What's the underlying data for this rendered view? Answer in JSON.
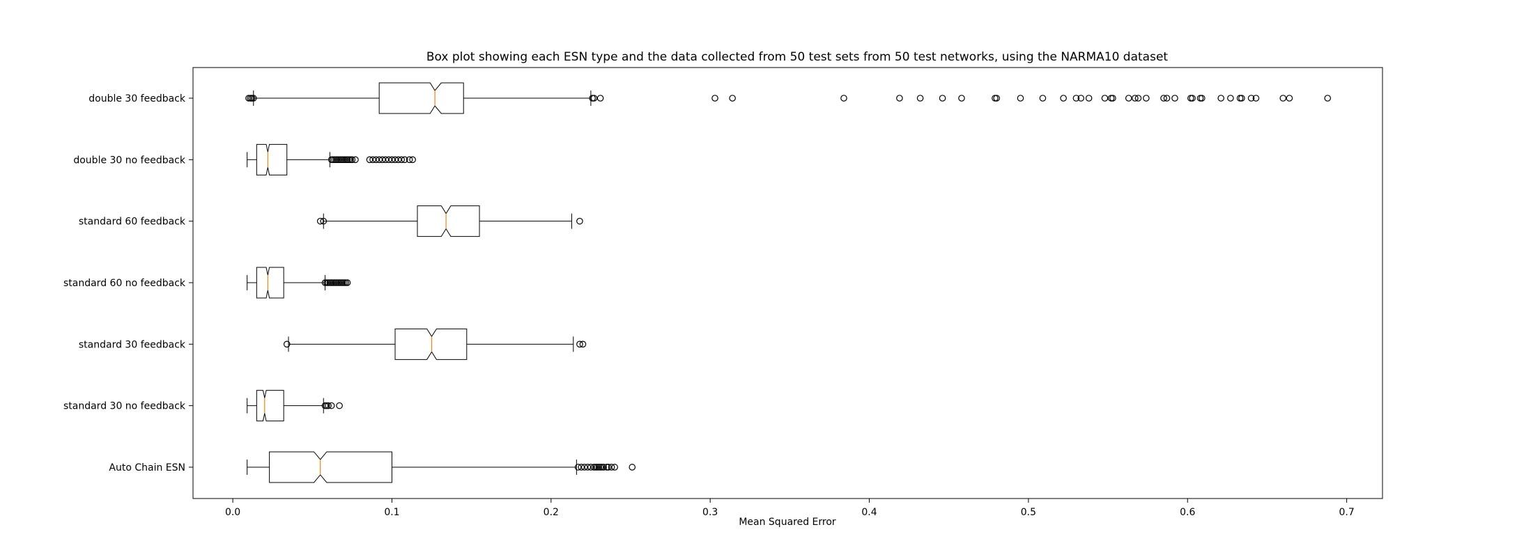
{
  "chart_data": {
    "type": "boxplot",
    "orientation": "horizontal",
    "notched": true,
    "title": "Box plot showing each ESN type and the data collected from 50 test sets from 50 test networks, using the NARMA10 dataset",
    "xlabel": "Mean Squared Error",
    "ylabel": "",
    "xlim": [
      -0.025,
      0.7225
    ],
    "xticks": [
      "0.0",
      "0.1",
      "0.2",
      "0.3",
      "0.4",
      "0.5",
      "0.6",
      "0.7"
    ],
    "grid": false,
    "colors": {
      "box": "#000000",
      "median": "#ff7f0e",
      "background": "#ffffff"
    },
    "categories": [
      "double 30 feedback",
      "double 30 no feedback",
      "standard 60 feedback",
      "standard 60 no feedback",
      "standard 30 feedback",
      "standard 30 no feedback",
      "Auto Chain ESN"
    ],
    "series": [
      {
        "name": "double 30 feedback",
        "whisker_low": 0.013,
        "q1": 0.092,
        "median": 0.127,
        "notch_low": 0.124,
        "notch_high": 0.131,
        "q3": 0.145,
        "whisker_high": 0.225,
        "outliers": [
          0.01,
          0.011,
          0.012,
          0.012,
          0.013,
          0.226,
          0.227,
          0.231,
          0.303,
          0.314,
          0.384,
          0.419,
          0.432,
          0.446,
          0.458,
          0.479,
          0.48,
          0.495,
          0.509,
          0.522,
          0.53,
          0.533,
          0.538,
          0.548,
          0.552,
          0.553,
          0.563,
          0.567,
          0.569,
          0.574,
          0.585,
          0.587,
          0.592,
          0.602,
          0.603,
          0.608,
          0.609,
          0.621,
          0.627,
          0.633,
          0.634,
          0.64,
          0.643,
          0.66,
          0.664,
          0.688
        ]
      },
      {
        "name": "double 30 no feedback",
        "whisker_low": 0.009,
        "q1": 0.015,
        "median": 0.022,
        "notch_low": 0.021,
        "notch_high": 0.023,
        "q3": 0.034,
        "whisker_high": 0.061,
        "outliers": [
          0.062,
          0.063,
          0.064,
          0.065,
          0.066,
          0.067,
          0.068,
          0.069,
          0.07,
          0.071,
          0.072,
          0.073,
          0.074,
          0.075,
          0.077,
          0.086,
          0.088,
          0.09,
          0.092,
          0.094,
          0.096,
          0.098,
          0.1,
          0.102,
          0.104,
          0.106,
          0.108,
          0.111,
          0.113
        ]
      },
      {
        "name": "standard 60 feedback",
        "whisker_low": 0.057,
        "q1": 0.116,
        "median": 0.134,
        "notch_low": 0.131,
        "notch_high": 0.137,
        "q3": 0.155,
        "whisker_high": 0.213,
        "outliers": [
          0.055,
          0.057,
          0.218
        ]
      },
      {
        "name": "standard 60 no feedback",
        "whisker_low": 0.009,
        "q1": 0.015,
        "median": 0.022,
        "notch_low": 0.021,
        "notch_high": 0.023,
        "q3": 0.032,
        "whisker_high": 0.058,
        "outliers": [
          0.058,
          0.059,
          0.06,
          0.061,
          0.062,
          0.063,
          0.064,
          0.065,
          0.066,
          0.067,
          0.068,
          0.069,
          0.07,
          0.071,
          0.072
        ]
      },
      {
        "name": "standard 30 feedback",
        "whisker_low": 0.035,
        "q1": 0.102,
        "median": 0.125,
        "notch_low": 0.122,
        "notch_high": 0.128,
        "q3": 0.147,
        "whisker_high": 0.214,
        "outliers": [
          0.034,
          0.218,
          0.22
        ]
      },
      {
        "name": "standard 30 no feedback",
        "whisker_low": 0.009,
        "q1": 0.015,
        "median": 0.02,
        "notch_low": 0.019,
        "notch_high": 0.021,
        "q3": 0.032,
        "whisker_high": 0.057,
        "outliers": [
          0.058,
          0.059,
          0.06,
          0.062,
          0.067
        ]
      },
      {
        "name": "Auto Chain ESN",
        "whisker_low": 0.009,
        "q1": 0.023,
        "median": 0.055,
        "notch_low": 0.051,
        "notch_high": 0.059,
        "q3": 0.1,
        "whisker_high": 0.216,
        "outliers": [
          0.217,
          0.219,
          0.221,
          0.223,
          0.225,
          0.227,
          0.228,
          0.229,
          0.23,
          0.231,
          0.232,
          0.233,
          0.235,
          0.236,
          0.238,
          0.24,
          0.251
        ]
      }
    ]
  }
}
